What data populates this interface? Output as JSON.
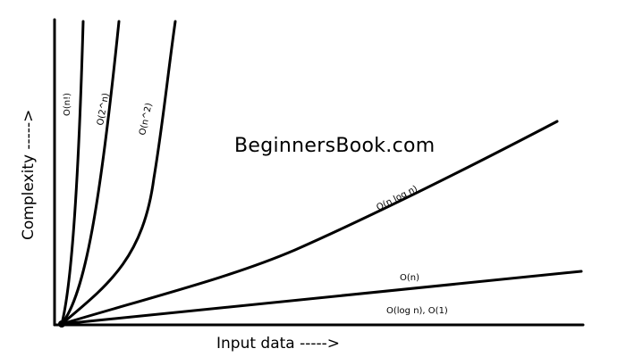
{
  "chart_data": {
    "type": "line",
    "title": "",
    "xlabel": "Input data ----->",
    "ylabel": "Complexity ----->",
    "watermark": "BeginnersBook.com",
    "grid": false,
    "legend": "none",
    "series": [
      {
        "name": "O(n!)",
        "label": "O(n!)"
      },
      {
        "name": "O(2^n)",
        "label": "O(2^n)"
      },
      {
        "name": "O(n^2)",
        "label": "O(n^2)"
      },
      {
        "name": "O(n log n)",
        "label": "O(n log n)"
      },
      {
        "name": "O(n)",
        "label": "O(n)"
      },
      {
        "name": "O(log n), O(1)",
        "label": "O(log n), O(1)"
      }
    ]
  }
}
